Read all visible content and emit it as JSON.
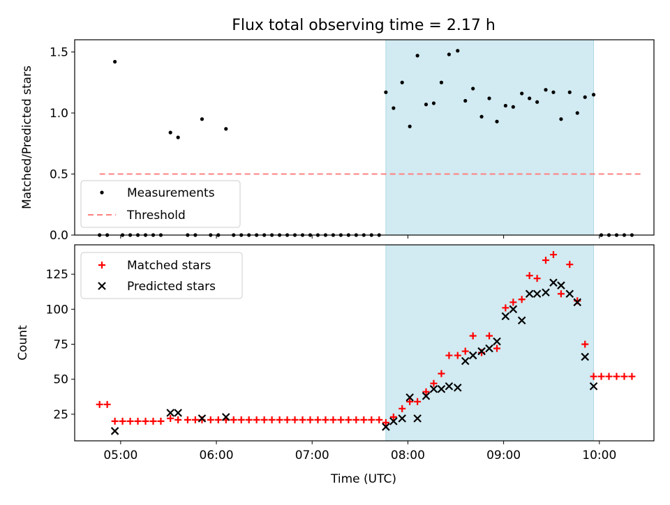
{
  "chart_data": {
    "title": "Flux total observing time = 2.17 h",
    "xlabel": "Time (UTC)",
    "x_tick_labels": [
      "05:00",
      "06:00",
      "07:00",
      "08:00",
      "09:00",
      "10:00"
    ],
    "x_tick_hours": [
      5,
      6,
      7,
      8,
      9,
      10
    ],
    "xlim_hours": [
      4.52,
      10.57
    ],
    "highlight_hours": [
      7.77,
      9.94
    ],
    "highlight_color": "#add8e6",
    "panels": [
      {
        "type": "scatter",
        "ylabel": "Matched/Predicted stars",
        "ylim": [
          0,
          1.6
        ],
        "y_ticks": [
          0.0,
          0.5,
          1.0,
          1.5
        ],
        "y_tick_labels": [
          "0.0",
          "0.5",
          "1.0",
          "1.5"
        ],
        "legend_position": "lower-left",
        "threshold": {
          "name": "Threshold",
          "value": 0.5,
          "x_range": [
            4.78,
            10.43
          ],
          "color": "#ff8080"
        },
        "series": [
          {
            "name": "Measurements",
            "color": "#000000",
            "marker": "dot",
            "x": [
              4.78,
              4.86,
              4.94,
              5.02,
              5.1,
              5.18,
              5.26,
              5.34,
              5.42,
              5.52,
              5.6,
              5.7,
              5.78,
              5.85,
              5.94,
              6.02,
              6.1,
              6.18,
              6.26,
              6.34,
              6.42,
              6.5,
              6.58,
              6.66,
              6.74,
              6.82,
              6.9,
              6.98,
              7.06,
              7.14,
              7.22,
              7.3,
              7.38,
              7.46,
              7.54,
              7.62,
              7.7,
              7.77,
              7.85,
              7.94,
              8.02,
              8.1,
              8.19,
              8.27,
              8.35,
              8.43,
              8.52,
              8.6,
              8.68,
              8.77,
              8.85,
              8.93,
              9.02,
              9.1,
              9.19,
              9.27,
              9.35,
              9.44,
              9.52,
              9.6,
              9.69,
              9.77,
              9.85,
              9.94,
              10.02,
              10.1,
              10.18,
              10.26,
              10.34
            ],
            "y": [
              0,
              0,
              1.42,
              0,
              0,
              0,
              0,
              0,
              0,
              0.84,
              0.8,
              0,
              0,
              0.95,
              0,
              0,
              0.87,
              0,
              0,
              0,
              0,
              0,
              0,
              0,
              0,
              0,
              0,
              0,
              0,
              0,
              0,
              0,
              0,
              0,
              0,
              0,
              0,
              1.17,
              1.04,
              1.25,
              0.89,
              1.47,
              1.07,
              1.08,
              1.25,
              1.48,
              1.51,
              1.1,
              1.2,
              0.97,
              1.12,
              0.93,
              1.06,
              1.05,
              1.16,
              1.12,
              1.09,
              1.19,
              1.17,
              0.95,
              1.17,
              1.0,
              1.13,
              1.15,
              0,
              0,
              0,
              0,
              0
            ]
          }
        ]
      },
      {
        "type": "scatter",
        "ylabel": "Count",
        "ylim": [
          6,
          146
        ],
        "y_ticks": [
          25,
          50,
          75,
          100,
          125
        ],
        "y_tick_labels": [
          "25",
          "50",
          "75",
          "100",
          "125"
        ],
        "legend_position": "upper-left",
        "series": [
          {
            "name": "Matched stars",
            "color": "#ff0000",
            "marker": "plus",
            "x": [
              4.78,
              4.86,
              4.94,
              5.02,
              5.1,
              5.18,
              5.26,
              5.34,
              5.42,
              5.52,
              5.6,
              5.7,
              5.78,
              5.85,
              5.94,
              6.02,
              6.1,
              6.18,
              6.26,
              6.34,
              6.42,
              6.5,
              6.58,
              6.66,
              6.74,
              6.82,
              6.9,
              6.98,
              7.06,
              7.14,
              7.22,
              7.3,
              7.38,
              7.46,
              7.54,
              7.62,
              7.7,
              7.77,
              7.85,
              7.94,
              8.02,
              8.1,
              8.19,
              8.27,
              8.35,
              8.43,
              8.52,
              8.6,
              8.68,
              8.77,
              8.85,
              8.93,
              9.02,
              9.1,
              9.19,
              9.27,
              9.35,
              9.44,
              9.52,
              9.6,
              9.69,
              9.77,
              9.85,
              9.94,
              10.02,
              10.1,
              10.18,
              10.26,
              10.34
            ],
            "y": [
              32,
              32,
              20,
              20,
              20,
              20,
              20,
              20,
              20,
              22,
              21,
              21,
              21,
              21,
              21,
              21,
              21,
              21,
              21,
              21,
              21,
              21,
              21,
              21,
              21,
              21,
              21,
              21,
              21,
              21,
              21,
              21,
              21,
              21,
              21,
              21,
              21,
              19,
              23,
              29,
              34,
              34,
              41,
              47,
              54,
              67,
              67,
              70,
              81,
              69,
              81,
              72,
              101,
              105,
              107,
              124,
              122,
              135,
              139,
              111,
              132,
              106,
              75,
              52,
              52,
              52,
              52,
              52,
              52
            ]
          },
          {
            "name": "Predicted stars",
            "color": "#000000",
            "marker": "x",
            "x": [
              4.94,
              5.52,
              5.6,
              5.85,
              6.1,
              7.77,
              7.85,
              7.94,
              8.02,
              8.1,
              8.19,
              8.27,
              8.35,
              8.43,
              8.52,
              8.6,
              8.68,
              8.77,
              8.85,
              8.93,
              9.02,
              9.1,
              9.19,
              9.27,
              9.35,
              9.44,
              9.52,
              9.6,
              9.69,
              9.77,
              9.85,
              9.94
            ],
            "y": [
              13,
              26,
              26,
              22,
              23,
              16,
              20,
              22,
              37,
              22,
              38,
              43,
              43,
              45,
              44,
              63,
              67,
              70,
              72,
              77,
              95,
              100,
              92,
              111,
              111,
              112,
              119,
              117,
              111,
              105,
              66,
              45
            ]
          }
        ]
      }
    ]
  }
}
